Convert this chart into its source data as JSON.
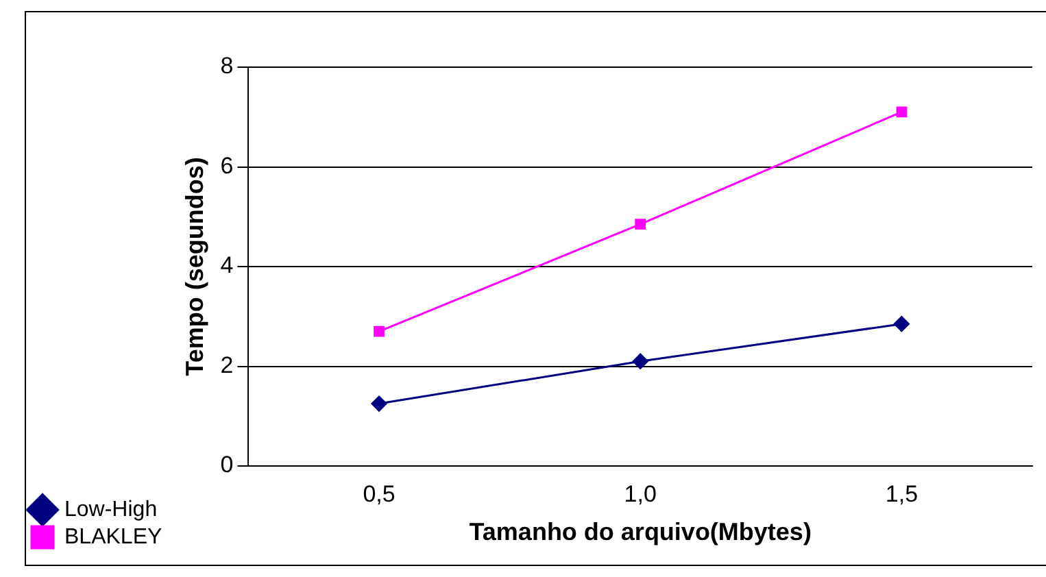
{
  "chart_data": {
    "type": "line",
    "xlabel": "Tamanho do arquivo(Mbytes)",
    "ylabel": "Tempo (segundos)",
    "categories": [
      "0,5",
      "1,0",
      "1,5"
    ],
    "series": [
      {
        "name": "Low-High",
        "color": "#000080",
        "marker": "diamond",
        "values": [
          1.25,
          2.1,
          2.85
        ]
      },
      {
        "name": "BLAKLEY",
        "color": "#ff00ff",
        "marker": "square",
        "values": [
          2.7,
          4.85,
          7.1
        ]
      }
    ],
    "ylim": [
      0,
      8
    ],
    "yticks": [
      0,
      2,
      4,
      6,
      8
    ],
    "grid": "y",
    "legend": "bottom left"
  }
}
